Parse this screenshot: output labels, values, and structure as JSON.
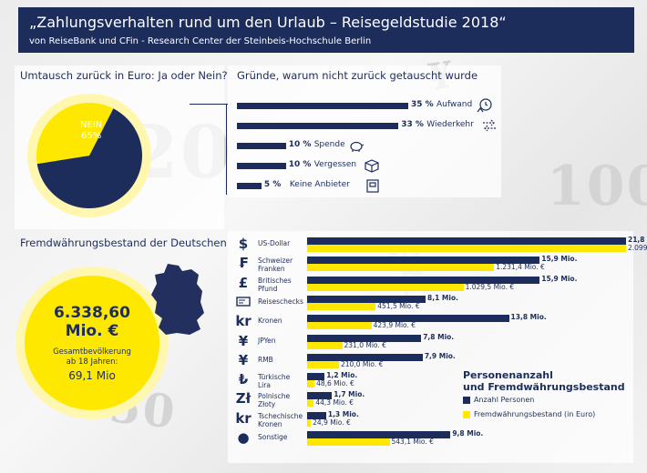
{
  "header": {
    "title": "„Zahlungsverhalten rund um den Urlaub – Reisegeldstudie 2018“",
    "subtitle": "von ReiseBank und CFin - Research Center der Steinbeis-Hochschule Berlin"
  },
  "colors": {
    "navy": "#1c2d5c",
    "yellow": "#ffe800",
    "halo": "#fff7b0"
  },
  "chart_data": [
    {
      "type": "pie",
      "title": "Umtausch zurück in Euro: Ja oder Nein?",
      "slices": [
        {
          "label": "NEIN",
          "value": 65,
          "value_label": "65%",
          "color": "#1c2d5c"
        },
        {
          "label": "JA",
          "value": 35,
          "value_label": "35%",
          "color": "#ffe800"
        }
      ]
    },
    {
      "type": "bar",
      "orientation": "horizontal",
      "title": "Gründe, warum nicht zurück getauscht wurde",
      "categories": [
        "Aufwand",
        "Wiederkehr",
        "Spende",
        "Vergessen",
        "Keine Anbieter"
      ],
      "values": [
        35,
        33,
        10,
        10,
        5
      ],
      "value_labels": [
        "35 %",
        "33 %",
        "10 %",
        "10 %",
        "5 %"
      ],
      "icons": [
        "clock-person-icon",
        "return-arrows-icon",
        "piggy-bank-icon",
        "box-icon",
        "atm-icon"
      ]
    },
    {
      "type": "bar",
      "orientation": "horizontal",
      "title": "Fremdwährungsbestand der Deutschen",
      "categories": [
        "US-Dollar",
        "Schweizer Franken",
        "Britisches Pfund",
        "Reiseschecks",
        "Kronen",
        "JPYen",
        "RMB",
        "Türkische Lira",
        "Polnische Złoty",
        "Tschechische Kronen",
        "Sonstige"
      ],
      "category_lines": [
        [
          "US-Dollar"
        ],
        [
          "Schweizer",
          "Franken"
        ],
        [
          "Britisches",
          "Pfund"
        ],
        [
          "Reiseschecks"
        ],
        [
          "Kronen"
        ],
        [
          "JPYen"
        ],
        [
          "RMB"
        ],
        [
          "Türkische",
          "Lira"
        ],
        [
          "Polnische",
          "Złoty"
        ],
        [
          "Tschechische",
          "Kronen"
        ],
        [
          "Sonstige"
        ]
      ],
      "symbols": [
        "$",
        "₣",
        "£",
        "",
        "kr",
        "¥",
        "¥",
        "₺",
        "Zł",
        "kr",
        "●"
      ],
      "series": [
        {
          "name": "Anzahl Personen",
          "color": "#1c2d5c",
          "values": [
            21.8,
            15.9,
            15.9,
            8.1,
            13.8,
            7.8,
            7.9,
            1.2,
            1.7,
            1.3,
            9.8
          ],
          "labels": [
            "21,8 Mio.",
            "15,9 Mio.",
            "15,9 Mio.",
            "8,1 Mio.",
            "13,8 Mio.",
            "7,8 Mio.",
            "7,9 Mio.",
            "1,2 Mio.",
            "1,7 Mio.",
            "1,3 Mio.",
            "9,8 Mio."
          ]
        },
        {
          "name": "Fremdwährungsbestand (in Euro)",
          "color": "#ffe800",
          "values": [
            2099.9,
            1231.4,
            1029.5,
            451.5,
            423.9,
            231.0,
            210.0,
            48.6,
            44.3,
            24.9,
            543.1
          ],
          "labels": [
            "2.099,9 Mio. €",
            "1.231,4 Mio. €",
            "1.029,5 Mio. €",
            "451,5 Mio. €",
            "423,9 Mio. €",
            "231,0 Mio. €",
            "210,0 Mio. €",
            "48,6 Mio. €",
            "44,3 Mio. €",
            "24,9 Mio. €",
            "543,1 Mio. €"
          ]
        }
      ]
    }
  ],
  "total": {
    "amount": "6.338,60",
    "unit": "Mio. €",
    "pop_line1": "Gesamtbevölkerung",
    "pop_line2": "ab 18 Jahren:",
    "pop_value": "69,1 Mio"
  },
  "legend": {
    "title_line1": "Personenanzahl",
    "title_line2": "und Fremdwährungsbestand",
    "item1": "Anzahl Personen",
    "item2": "Fremdwährungsbestand (in Euro)"
  }
}
